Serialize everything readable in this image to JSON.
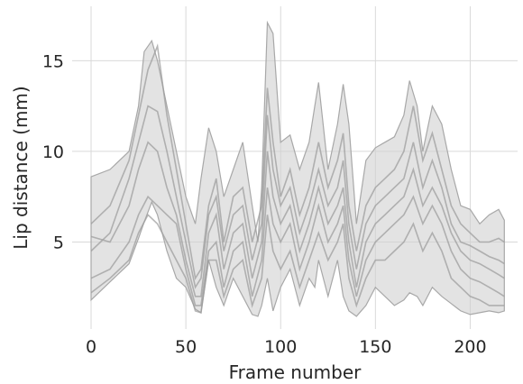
{
  "chart_data": {
    "type": "line",
    "title": "",
    "xlabel": "Frame number",
    "ylabel": "Lip distance (mm)",
    "xlim": [
      -10,
      225
    ],
    "ylim": [
      0.2,
      18
    ],
    "xticks": [
      0,
      50,
      100,
      150,
      200
    ],
    "yticks": [
      5,
      10,
      15
    ],
    "grid": true,
    "style": {
      "band_color": "#d0d0d0",
      "line_color": "#9e9e9e",
      "grid_color": "#d9d9d9",
      "text_color": "#262626"
    },
    "band": {
      "x": [
        0,
        10,
        20,
        25,
        28,
        32,
        35,
        40,
        45,
        50,
        55,
        58,
        62,
        66,
        70,
        75,
        80,
        85,
        88,
        90,
        93,
        96,
        100,
        105,
        110,
        115,
        118,
        120,
        125,
        130,
        133,
        136,
        140,
        145,
        150,
        155,
        160,
        165,
        168,
        172,
        175,
        180,
        185,
        190,
        195,
        200,
        205,
        210,
        215,
        218
      ],
      "upper": [
        8.6,
        9.0,
        10.0,
        12.5,
        15.5,
        16.1,
        15.0,
        12.5,
        10.0,
        7.5,
        6.0,
        8.5,
        11.3,
        10.0,
        7.5,
        9.0,
        10.5,
        7.0,
        5.0,
        8.0,
        17.1,
        16.5,
        10.5,
        10.9,
        9.0,
        10.5,
        12.5,
        13.8,
        9.0,
        11.5,
        13.7,
        11.5,
        6.0,
        9.5,
        10.2,
        10.5,
        10.8,
        12.0,
        13.9,
        12.5,
        10.0,
        12.5,
        11.5,
        9.0,
        7.0,
        6.8,
        6.0,
        6.5,
        6.8,
        6.2
      ],
      "lower": [
        1.8,
        2.8,
        3.8,
        5.2,
        6.1,
        7.2,
        6.5,
        4.5,
        3.0,
        2.5,
        1.3,
        1.1,
        4.0,
        2.5,
        1.5,
        3.0,
        2.0,
        1.0,
        0.9,
        1.5,
        3.0,
        1.2,
        2.5,
        3.5,
        1.5,
        3.0,
        2.5,
        4.0,
        2.0,
        4.0,
        2.0,
        1.2,
        0.9,
        1.5,
        2.5,
        2.0,
        1.5,
        1.8,
        2.2,
        2.0,
        1.5,
        2.5,
        2.0,
        1.6,
        1.2,
        1.0,
        1.1,
        1.2,
        1.1,
        1.2
      ]
    },
    "series": [
      {
        "x": [
          0,
          10,
          20,
          25,
          30,
          35,
          40,
          45,
          50,
          55,
          58,
          62,
          66,
          70,
          75,
          80,
          85,
          90,
          93,
          96,
          100,
          105,
          110,
          115,
          120,
          125,
          130,
          133,
          136,
          140,
          145,
          150,
          155,
          160,
          165,
          170,
          175,
          180,
          185,
          190,
          195,
          200,
          205,
          210,
          215,
          218
        ],
        "values": [
          6.0,
          7.0,
          9.5,
          12.0,
          14.5,
          15.8,
          12.0,
          9.0,
          6.0,
          3.0,
          3.5,
          7.0,
          8.5,
          5.0,
          7.5,
          8.0,
          5.0,
          7.0,
          13.5,
          10.5,
          7.5,
          9.0,
          6.5,
          8.0,
          10.5,
          8.0,
          9.5,
          11.0,
          7.0,
          4.5,
          7.0,
          8.0,
          8.5,
          9.0,
          10.0,
          12.5,
          9.5,
          11.0,
          9.0,
          7.0,
          6.0,
          5.5,
          5.0,
          5.0,
          5.2,
          5.0
        ]
      },
      {
        "x": [
          0,
          10,
          20,
          25,
          30,
          35,
          40,
          45,
          50,
          55,
          58,
          62,
          66,
          70,
          75,
          80,
          85,
          90,
          93,
          96,
          100,
          105,
          110,
          115,
          120,
          125,
          130,
          133,
          136,
          140,
          145,
          150,
          155,
          160,
          165,
          170,
          175,
          180,
          185,
          190,
          195,
          200,
          205,
          210,
          215,
          218
        ],
        "values": [
          4.5,
          5.5,
          8.5,
          10.5,
          12.5,
          12.2,
          10.0,
          7.5,
          5.0,
          2.5,
          3.0,
          6.5,
          7.5,
          4.5,
          6.5,
          7.0,
          4.0,
          6.0,
          12.0,
          9.0,
          7.0,
          8.0,
          5.5,
          7.0,
          9.0,
          7.0,
          8.0,
          9.5,
          6.0,
          3.5,
          6.0,
          7.0,
          7.5,
          8.0,
          8.5,
          10.5,
          8.0,
          9.5,
          8.0,
          6.0,
          5.0,
          4.8,
          4.5,
          4.2,
          4.0,
          3.8
        ]
      },
      {
        "x": [
          0,
          10,
          20,
          25,
          30,
          35,
          40,
          45,
          50,
          55,
          58,
          62,
          66,
          70,
          75,
          80,
          85,
          90,
          93,
          96,
          100,
          105,
          110,
          115,
          120,
          125,
          130,
          133,
          136,
          140,
          145,
          150,
          155,
          160,
          165,
          170,
          175,
          180,
          185,
          190,
          195,
          200,
          205,
          210,
          215,
          218
        ],
        "values": [
          5.3,
          5.0,
          7.0,
          9.0,
          10.5,
          10.0,
          8.0,
          6.5,
          4.0,
          2.0,
          2.0,
          5.5,
          6.5,
          3.5,
          5.5,
          6.0,
          3.0,
          5.0,
          10.0,
          7.5,
          6.0,
          7.0,
          4.5,
          6.0,
          8.0,
          6.0,
          7.0,
          8.0,
          5.0,
          2.5,
          5.0,
          6.0,
          6.5,
          7.0,
          7.5,
          9.0,
          7.0,
          8.0,
          7.0,
          5.5,
          4.5,
          4.0,
          3.8,
          3.5,
          3.2,
          3.0
        ]
      },
      {
        "x": [
          0,
          10,
          20,
          25,
          30,
          35,
          40,
          45,
          50,
          55,
          58,
          62,
          66,
          70,
          75,
          80,
          85,
          90,
          93,
          96,
          100,
          105,
          110,
          115,
          120,
          125,
          130,
          133,
          136,
          140,
          145,
          150,
          155,
          160,
          165,
          170,
          175,
          180,
          185,
          190,
          195,
          200,
          205,
          210,
          215,
          218
        ],
        "values": [
          3.0,
          3.5,
          5.0,
          6.5,
          7.5,
          7.0,
          6.5,
          6.0,
          3.5,
          1.5,
          1.5,
          4.5,
          5.0,
          2.5,
          4.5,
          5.0,
          2.0,
          4.0,
          8.0,
          6.0,
          5.0,
          6.0,
          3.5,
          5.0,
          7.0,
          5.0,
          6.0,
          7.0,
          4.0,
          2.0,
          4.0,
          5.0,
          5.5,
          6.0,
          6.5,
          7.5,
          6.0,
          7.0,
          6.0,
          4.5,
          3.5,
          3.0,
          2.8,
          2.5,
          2.2,
          2.0
        ]
      },
      {
        "x": [
          0,
          10,
          20,
          25,
          30,
          35,
          40,
          45,
          50,
          55,
          58,
          62,
          66,
          70,
          75,
          80,
          85,
          90,
          93,
          96,
          100,
          105,
          110,
          115,
          120,
          125,
          130,
          133,
          136,
          140,
          145,
          150,
          155,
          160,
          165,
          170,
          175,
          180,
          185,
          190,
          195,
          200,
          205,
          210,
          215,
          218
        ],
        "values": [
          2.2,
          3.0,
          4.0,
          5.5,
          6.5,
          6.0,
          5.0,
          4.0,
          3.0,
          1.2,
          1.1,
          4.0,
          4.0,
          2.0,
          3.5,
          4.0,
          1.5,
          3.0,
          6.5,
          4.5,
          3.5,
          4.5,
          2.5,
          4.0,
          5.5,
          4.0,
          5.0,
          6.0,
          3.0,
          1.5,
          3.0,
          4.0,
          4.0,
          4.5,
          5.0,
          6.0,
          4.5,
          5.5,
          4.5,
          3.0,
          2.5,
          2.0,
          1.8,
          1.5,
          1.5,
          1.5
        ]
      }
    ]
  }
}
